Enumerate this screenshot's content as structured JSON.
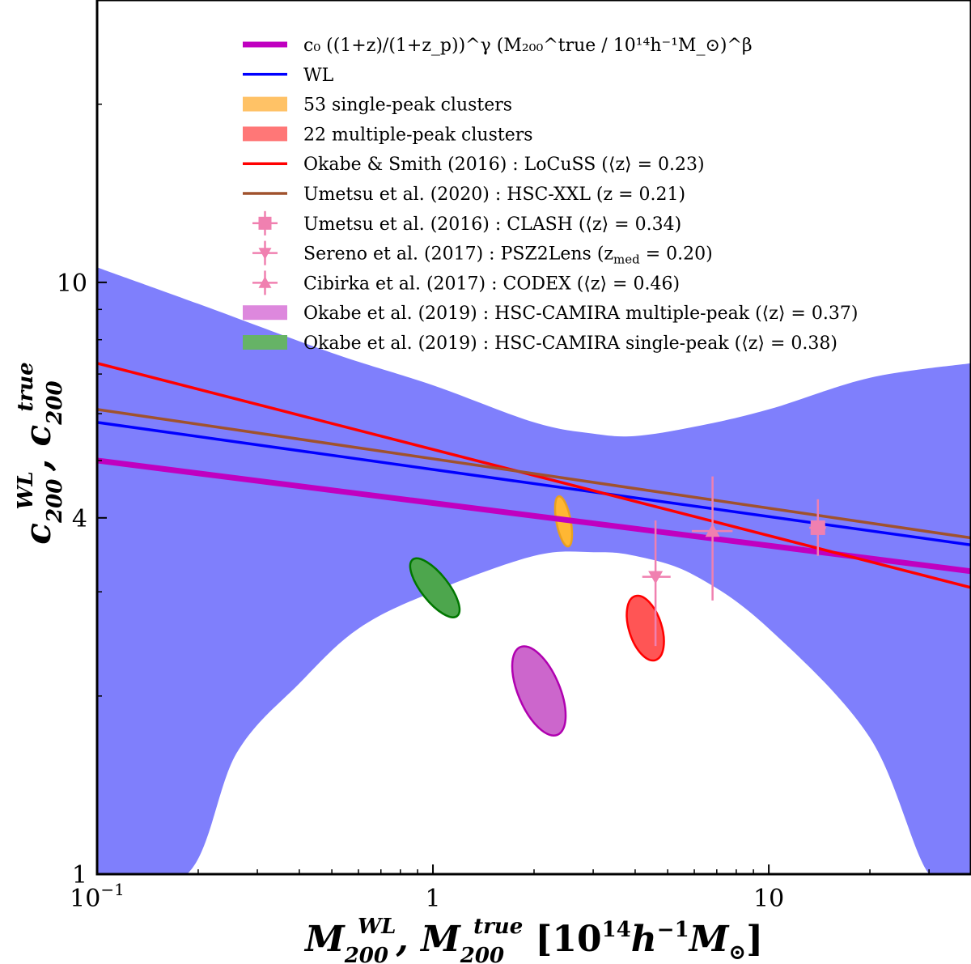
{
  "chart_data": {
    "type": "line",
    "scale": {
      "x": "log",
      "y": "log"
    },
    "xlim": [
      0.1,
      40
    ],
    "ylim": [
      1,
      30
    ],
    "xlabel": "M_200^WL, M_200^true [10^14 h^-1 M_⊙]",
    "ylabel": "c_200^WL, c_200^true",
    "x_ticks": [
      {
        "value": 0.1,
        "label": "10^−1"
      },
      {
        "value": 1,
        "label": "1"
      },
      {
        "value": 10,
        "label": "10"
      }
    ],
    "y_ticks": [
      {
        "value": 1,
        "label": "1"
      },
      {
        "value": 4,
        "label": "4"
      },
      {
        "value": 10,
        "label": "10"
      }
    ],
    "band": {
      "name": "WL",
      "color": "#7f7ffc",
      "upper": [
        [
          0.1,
          10.6
        ],
        [
          0.2,
          9.2
        ],
        [
          0.5,
          7.6
        ],
        [
          1,
          6.7
        ],
        [
          2,
          5.8
        ],
        [
          3,
          5.55
        ],
        [
          4,
          5.5
        ],
        [
          6,
          5.7
        ],
        [
          10,
          6.1
        ],
        [
          20,
          6.9
        ],
        [
          40,
          7.3
        ]
      ],
      "lower": [
        [
          0.1,
          1.0
        ],
        [
          0.185,
          1.0
        ],
        [
          0.26,
          1.6
        ],
        [
          0.4,
          2.1
        ],
        [
          0.6,
          2.6
        ],
        [
          1,
          3.0
        ],
        [
          2,
          3.45
        ],
        [
          3,
          3.5
        ],
        [
          4,
          3.45
        ],
        [
          6,
          3.2
        ],
        [
          10,
          2.6
        ],
        [
          20,
          1.7
        ],
        [
          30,
          1.0
        ],
        [
          40,
          1.0
        ]
      ]
    },
    "lines": [
      {
        "name": "fit",
        "color": "#c000c0",
        "width": 7,
        "points": [
          [
            0.1,
            5.0
          ],
          [
            40,
            3.25
          ]
        ]
      },
      {
        "name": "WL",
        "color": "#0000ff",
        "width": 3.5,
        "points": [
          [
            0.1,
            5.8
          ],
          [
            40,
            3.6
          ]
        ]
      },
      {
        "name": "Okabe & Smith (2016)",
        "color": "#ff0000",
        "width": 3.5,
        "points": [
          [
            0.1,
            7.3
          ],
          [
            40,
            3.05
          ]
        ]
      },
      {
        "name": "Umetsu et al. (2020)",
        "color": "#a0522d",
        "width": 3.5,
        "points": [
          [
            0.1,
            6.1
          ],
          [
            40,
            3.7
          ]
        ]
      }
    ],
    "ellipses": [
      {
        "name": "53 single-peak clusters",
        "fill": "#ffb733",
        "stroke": "#e8a020",
        "center": [
          2.45,
          3.95
        ],
        "points": [
          [
            2.37,
            4.35
          ],
          [
            2.53,
            3.58
          ],
          [
            2.5,
            3.85
          ],
          [
            2.4,
            4.05
          ]
        ]
      },
      {
        "name": "22 multiple-peak clusters",
        "fill": "#ff5555",
        "stroke": "#ff0000",
        "center": [
          4.3,
          2.6
        ],
        "points": [
          [
            4.0,
            2.95
          ],
          [
            4.6,
            2.3
          ],
          [
            4.5,
            2.75
          ],
          [
            4.1,
            2.45
          ]
        ]
      },
      {
        "name": "Okabe et al. (2019) multiple-peak",
        "fill": "#cc66cc",
        "stroke": "#b000b0",
        "center": [
          2.1,
          2.05
        ],
        "points": [
          [
            1.82,
            2.42
          ],
          [
            2.35,
            1.72
          ],
          [
            2.2,
            2.2
          ],
          [
            1.95,
            1.9
          ]
        ]
      },
      {
        "name": "Okabe et al. (2019) single-peak",
        "fill": "#4da64d",
        "stroke": "#007700",
        "center": [
          1.02,
          3.05
        ],
        "points": [
          [
            0.87,
            3.4
          ],
          [
            1.18,
            2.73
          ],
          [
            1.1,
            3.15
          ],
          [
            0.95,
            2.95
          ]
        ]
      }
    ],
    "points": [
      {
        "name": "Umetsu et al. (2016)",
        "marker": "square",
        "color": "#f080b0",
        "x": 14.0,
        "y": 3.85,
        "xerr": [
          0.8,
          0.8
        ],
        "yerr": [
          0.4,
          0.45
        ]
      },
      {
        "name": "Sereno et al. (2017)",
        "marker": "triangle-down",
        "color": "#f080b0",
        "x": 4.6,
        "y": 3.18,
        "xerr": [
          0.4,
          0.5
        ],
        "yerr": [
          0.75,
          0.78
        ]
      },
      {
        "name": "Cibirka et al. (2017)",
        "marker": "triangle-up",
        "color": "#f080b0",
        "x": 6.8,
        "y": 3.8,
        "xerr": [
          0.9,
          1.0
        ],
        "yerr": [
          0.9,
          0.9
        ]
      }
    ],
    "legend": {
      "position": "top",
      "entries": [
        {
          "type": "line",
          "color": "#c000c0",
          "width": 7,
          "label_main": "c₀ ((1+z)/(1+z_p))^γ (M₂₀₀^true / 10¹⁴h⁻¹M_⊙)^β"
        },
        {
          "type": "line",
          "color": "#0000ff",
          "width": 3.5,
          "label_main": "WL"
        },
        {
          "type": "patch",
          "color": "#ffc266",
          "label_main": "53 single-peak clusters"
        },
        {
          "type": "patch",
          "color": "#ff7777",
          "label_main": "22 multiple-peak clusters"
        },
        {
          "type": "line",
          "color": "#ff0000",
          "width": 3.5,
          "label_main": "Okabe & Smith (2016) :  LoCuSS (⟨z⟩ = 0.23)"
        },
        {
          "type": "line",
          "color": "#a0522d",
          "width": 3.5,
          "label_main": "Umetsu et al. (2020) :  HSC-XXL (z = 0.21)"
        },
        {
          "type": "marker",
          "marker": "square",
          "color": "#f080b0",
          "label_main": "Umetsu et al. (2016) :  CLASH (⟨z⟩ = 0.34)"
        },
        {
          "type": "marker",
          "marker": "triangle-down",
          "color": "#f080b0",
          "label_main": "Sereno et al. (2017) :  PSZ2Lens (z",
          "label_sub": "med",
          "label_tail": " = 0.20)"
        },
        {
          "type": "marker",
          "marker": "triangle-up",
          "color": "#f080b0",
          "label_main": "Cibirka et al. (2017) :  CODEX (⟨z⟩ = 0.46)"
        },
        {
          "type": "patch",
          "color": "#dd88dd",
          "label_main": "Okabe et al. (2019) :  HSC-CAMIRA multiple-peak (⟨z⟩ = 0.37)"
        },
        {
          "type": "patch",
          "color": "#66b366",
          "label_main": "Okabe et al. (2019) :  HSC-CAMIRA single-peak (⟨z⟩ = 0.38)"
        }
      ]
    }
  }
}
